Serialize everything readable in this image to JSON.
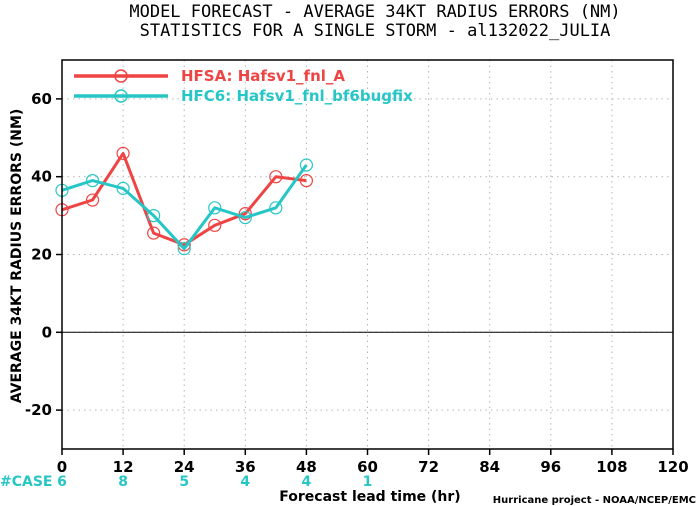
{
  "title_line1": "MODEL FORECAST - AVERAGE 34KT RADIUS ERRORS (NM)",
  "title_line2": "STATISTICS FOR A SINGLE STORM - al132022_JULIA",
  "credit": "Hurricane project - NOAA/NCEP/EMC",
  "case_label": "#CASE",
  "chart_data": {
    "type": "line",
    "xlabel": "Forecast lead time (hr)",
    "ylabel": "AVERAGE 34KT RADIUS ERRORS (NM)",
    "xlim": [
      0,
      120
    ],
    "ylim": [
      -30,
      70
    ],
    "x_ticks": [
      0,
      12,
      24,
      36,
      48,
      60,
      72,
      84,
      96,
      108,
      120
    ],
    "y_ticks": [
      -20,
      0,
      20,
      40,
      60
    ],
    "grid": true,
    "legend_position": "top-left",
    "series": [
      {
        "name": "HFSA: Hafsv1_fnl_A",
        "color": "#ee4444",
        "x": [
          0,
          6,
          12,
          18,
          24,
          30,
          36,
          42,
          48
        ],
        "y": [
          31.5,
          34,
          46,
          25.5,
          22.5,
          27.5,
          30.5,
          40,
          39
        ]
      },
      {
        "name": "HFC6: Hafsv1_fnl_bf6bugfix",
        "color": "#27c6c6",
        "x": [
          0,
          6,
          12,
          18,
          24,
          30,
          36,
          42,
          48
        ],
        "y": [
          36.5,
          39,
          37,
          30,
          21.5,
          32,
          29.5,
          32,
          43
        ]
      }
    ],
    "cases": [
      {
        "x": 0,
        "n": "6"
      },
      {
        "x": 12,
        "n": "8"
      },
      {
        "x": 24,
        "n": "5"
      },
      {
        "x": 36,
        "n": "4"
      },
      {
        "x": 48,
        "n": "4"
      },
      {
        "x": 60,
        "n": "1"
      }
    ]
  }
}
